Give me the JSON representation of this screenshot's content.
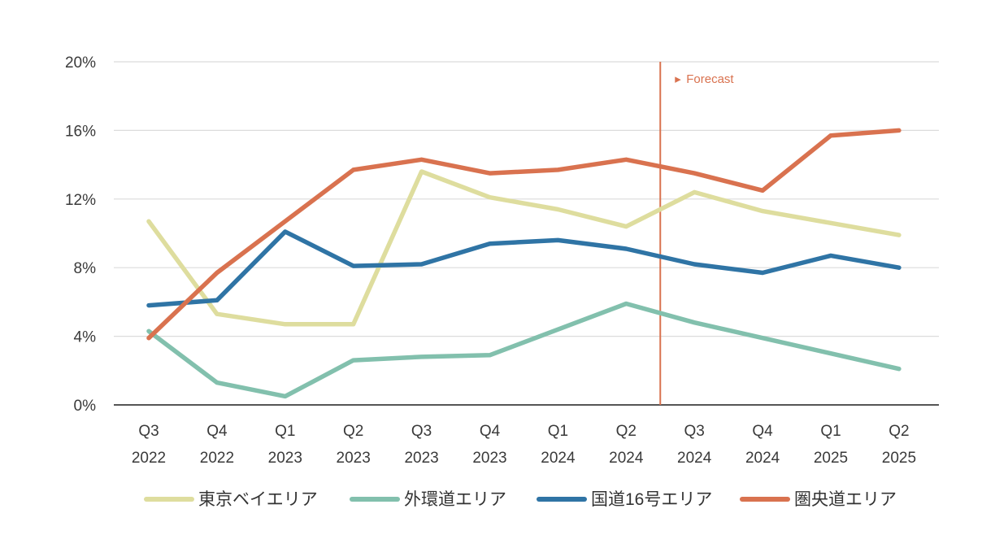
{
  "chart_data": {
    "type": "line",
    "title": "",
    "xlabel": "",
    "ylabel": "",
    "ylim": [
      0,
      20
    ],
    "y_unit": "%",
    "yticks": [
      "0%",
      "4%",
      "8%",
      "12%",
      "16%",
      "20%"
    ],
    "yticks_values": [
      0,
      4,
      8,
      12,
      16,
      20
    ],
    "grid": "horizontal",
    "legend_position": "bottom",
    "categories": [
      [
        "Q3",
        "2022"
      ],
      [
        "Q4",
        "2022"
      ],
      [
        "Q1",
        "2023"
      ],
      [
        "Q2",
        "2023"
      ],
      [
        "Q3",
        "2023"
      ],
      [
        "Q4",
        "2023"
      ],
      [
        "Q1",
        "2024"
      ],
      [
        "Q2",
        "2024"
      ],
      [
        "Q3",
        "2024"
      ],
      [
        "Q4",
        "2024"
      ],
      [
        "Q1",
        "2025"
      ],
      [
        "Q2",
        "2025"
      ]
    ],
    "forecast": {
      "label": "Forecast",
      "marker": "▸",
      "after_category_index": 7,
      "color": "#d9724f"
    },
    "series": [
      {
        "name": "東京ベイエリア",
        "color": "#dedd9e",
        "values": [
          10.7,
          5.3,
          4.7,
          4.7,
          13.6,
          12.1,
          11.4,
          10.4,
          12.4,
          11.3,
          10.6,
          9.9
        ]
      },
      {
        "name": "外環道エリア",
        "color": "#82c0ad",
        "values": [
          4.3,
          1.3,
          0.5,
          2.6,
          2.8,
          2.9,
          4.4,
          5.9,
          4.8,
          3.9,
          3.0,
          2.1
        ]
      },
      {
        "name": "国道16号エリア",
        "color": "#2f74a5",
        "values": [
          5.8,
          6.1,
          10.1,
          8.1,
          8.2,
          9.4,
          9.6,
          9.1,
          8.2,
          7.7,
          8.7,
          8.0
        ]
      },
      {
        "name": "圏央道エリア",
        "color": "#d9724f",
        "values": [
          3.9,
          7.7,
          10.7,
          13.7,
          14.3,
          13.5,
          13.7,
          14.3,
          13.5,
          12.5,
          15.7,
          16.0
        ]
      }
    ]
  }
}
